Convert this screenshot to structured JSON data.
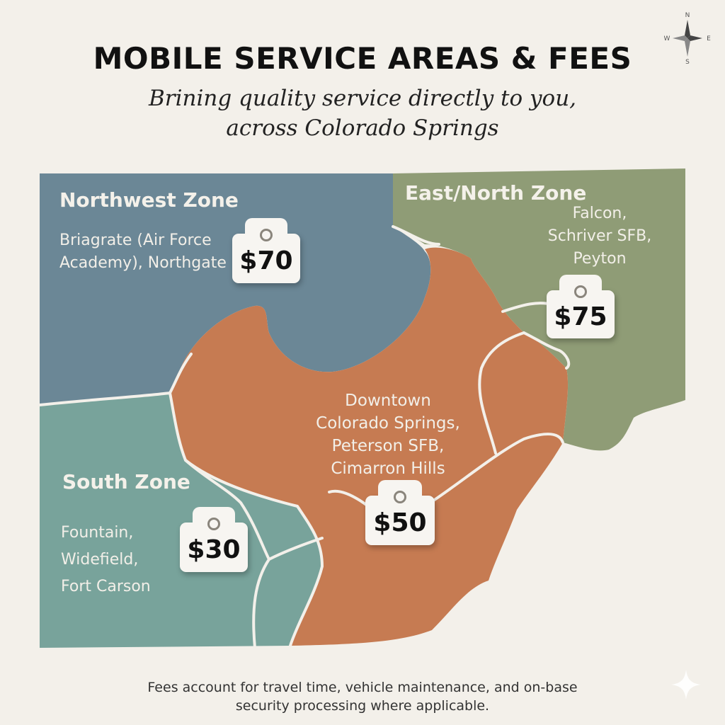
{
  "title": "MOBILE SERVICE AREAS & FEES",
  "subtitle": [
    "Brining quality service directly to you,",
    "across Colorado Springs"
  ],
  "zones": {
    "northwest": {
      "name": "Northwest Zone",
      "places": [
        "Briagrate (Air Force",
        "Academy), Northgate"
      ],
      "fee": "$70",
      "color": "#6b8796"
    },
    "east_north": {
      "name": "East/North Zone",
      "places": [
        "Falcon,",
        "Schriver SFB,",
        "Peyton"
      ],
      "fee": "$75",
      "color": "#8f9c76"
    },
    "central": {
      "name": "",
      "places": [
        "Downtown",
        "Colorado Springs,",
        "Peterson SFB,",
        "Cimarron Hills"
      ],
      "fee": "$50",
      "color": "#c67b52"
    },
    "south": {
      "name": "South Zone",
      "places": [
        "Fountain,",
        "Widefield,",
        "Fort Carson"
      ],
      "fee": "$30",
      "color": "#78a39b"
    }
  },
  "compass": {
    "n": "N",
    "e": "E",
    "s": "S",
    "w": "W"
  },
  "footer": [
    "Fees account for travel time, vehicle maintenance, and on-base",
    "security processing where applicable."
  ]
}
